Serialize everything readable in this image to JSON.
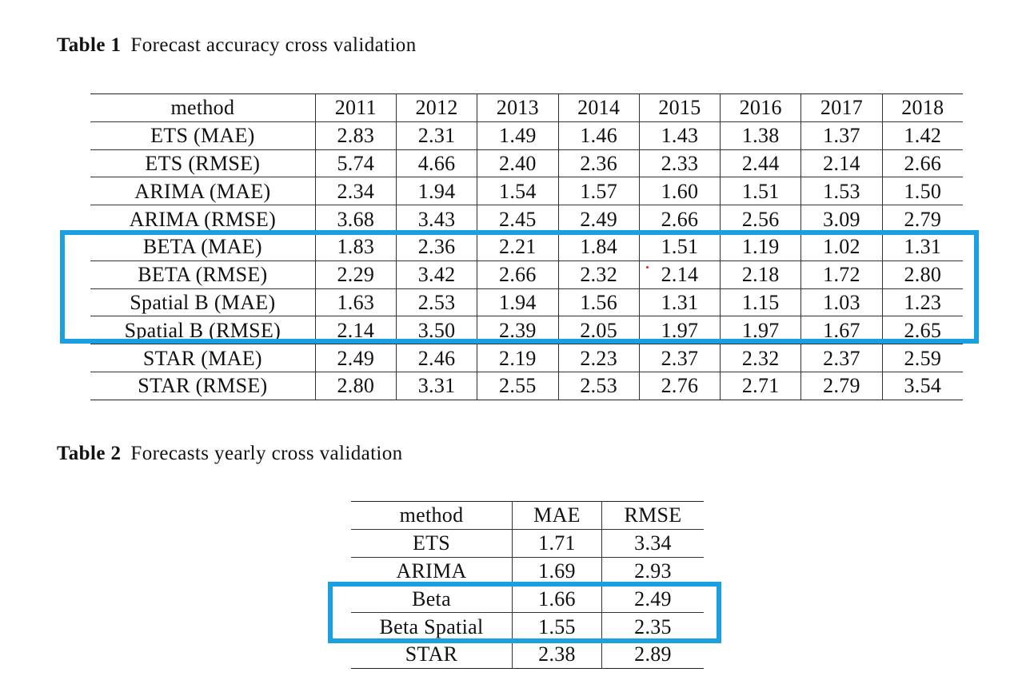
{
  "table1": {
    "caption_label": "Table 1",
    "caption_text": "Forecast accuracy cross validation",
    "headers": [
      "method",
      "2011",
      "2012",
      "2013",
      "2014",
      "2015",
      "2016",
      "2017",
      "2018"
    ],
    "rows": [
      [
        "ETS (MAE)",
        "2.83",
        "2.31",
        "1.49",
        "1.46",
        "1.43",
        "1.38",
        "1.37",
        "1.42"
      ],
      [
        "ETS (RMSE)",
        "5.74",
        "4.66",
        "2.40",
        "2.36",
        "2.33",
        "2.44",
        "2.14",
        "2.66"
      ],
      [
        "ARIMA (MAE)",
        "2.34",
        "1.94",
        "1.54",
        "1.57",
        "1.60",
        "1.51",
        "1.53",
        "1.50"
      ],
      [
        "ARIMA (RMSE)",
        "3.68",
        "3.43",
        "2.45",
        "2.49",
        "2.66",
        "2.56",
        "3.09",
        "2.79"
      ],
      [
        "BETA (MAE)",
        "1.83",
        "2.36",
        "2.21",
        "1.84",
        "1.51",
        "1.19",
        "1.02",
        "1.31"
      ],
      [
        "BETA (RMSE)",
        "2.29",
        "3.42",
        "2.66",
        "2.32",
        "2.14",
        "2.18",
        "1.72",
        "2.80"
      ],
      [
        "Spatial B (MAE)",
        "1.63",
        "2.53",
        "1.94",
        "1.56",
        "1.31",
        "1.15",
        "1.03",
        "1.23"
      ],
      [
        "Spatial B (RMSE)",
        "2.14",
        "3.50",
        "2.39",
        "2.05",
        "1.97",
        "1.97",
        "1.67",
        "2.65"
      ],
      [
        "STAR (MAE)",
        "2.49",
        "2.46",
        "2.19",
        "2.23",
        "2.37",
        "2.32",
        "2.37",
        "2.59"
      ],
      [
        "STAR (RMSE)",
        "2.80",
        "3.31",
        "2.55",
        "2.53",
        "2.76",
        "2.71",
        "2.79",
        "3.54"
      ]
    ]
  },
  "table2": {
    "caption_label": "Table 2",
    "caption_text": "Forecasts yearly cross validation",
    "headers": [
      "method",
      "MAE",
      "RMSE"
    ],
    "rows": [
      [
        "ETS",
        "1.71",
        "3.34"
      ],
      [
        "ARIMA",
        "1.69",
        "2.93"
      ],
      [
        "Beta",
        "1.66",
        "2.49"
      ],
      [
        "Beta Spatial",
        "1.55",
        "2.35"
      ],
      [
        "STAR",
        "2.38",
        "2.89"
      ]
    ]
  },
  "colors": {
    "highlight": "#1aa0e0",
    "marker_dot": "#e02020"
  }
}
